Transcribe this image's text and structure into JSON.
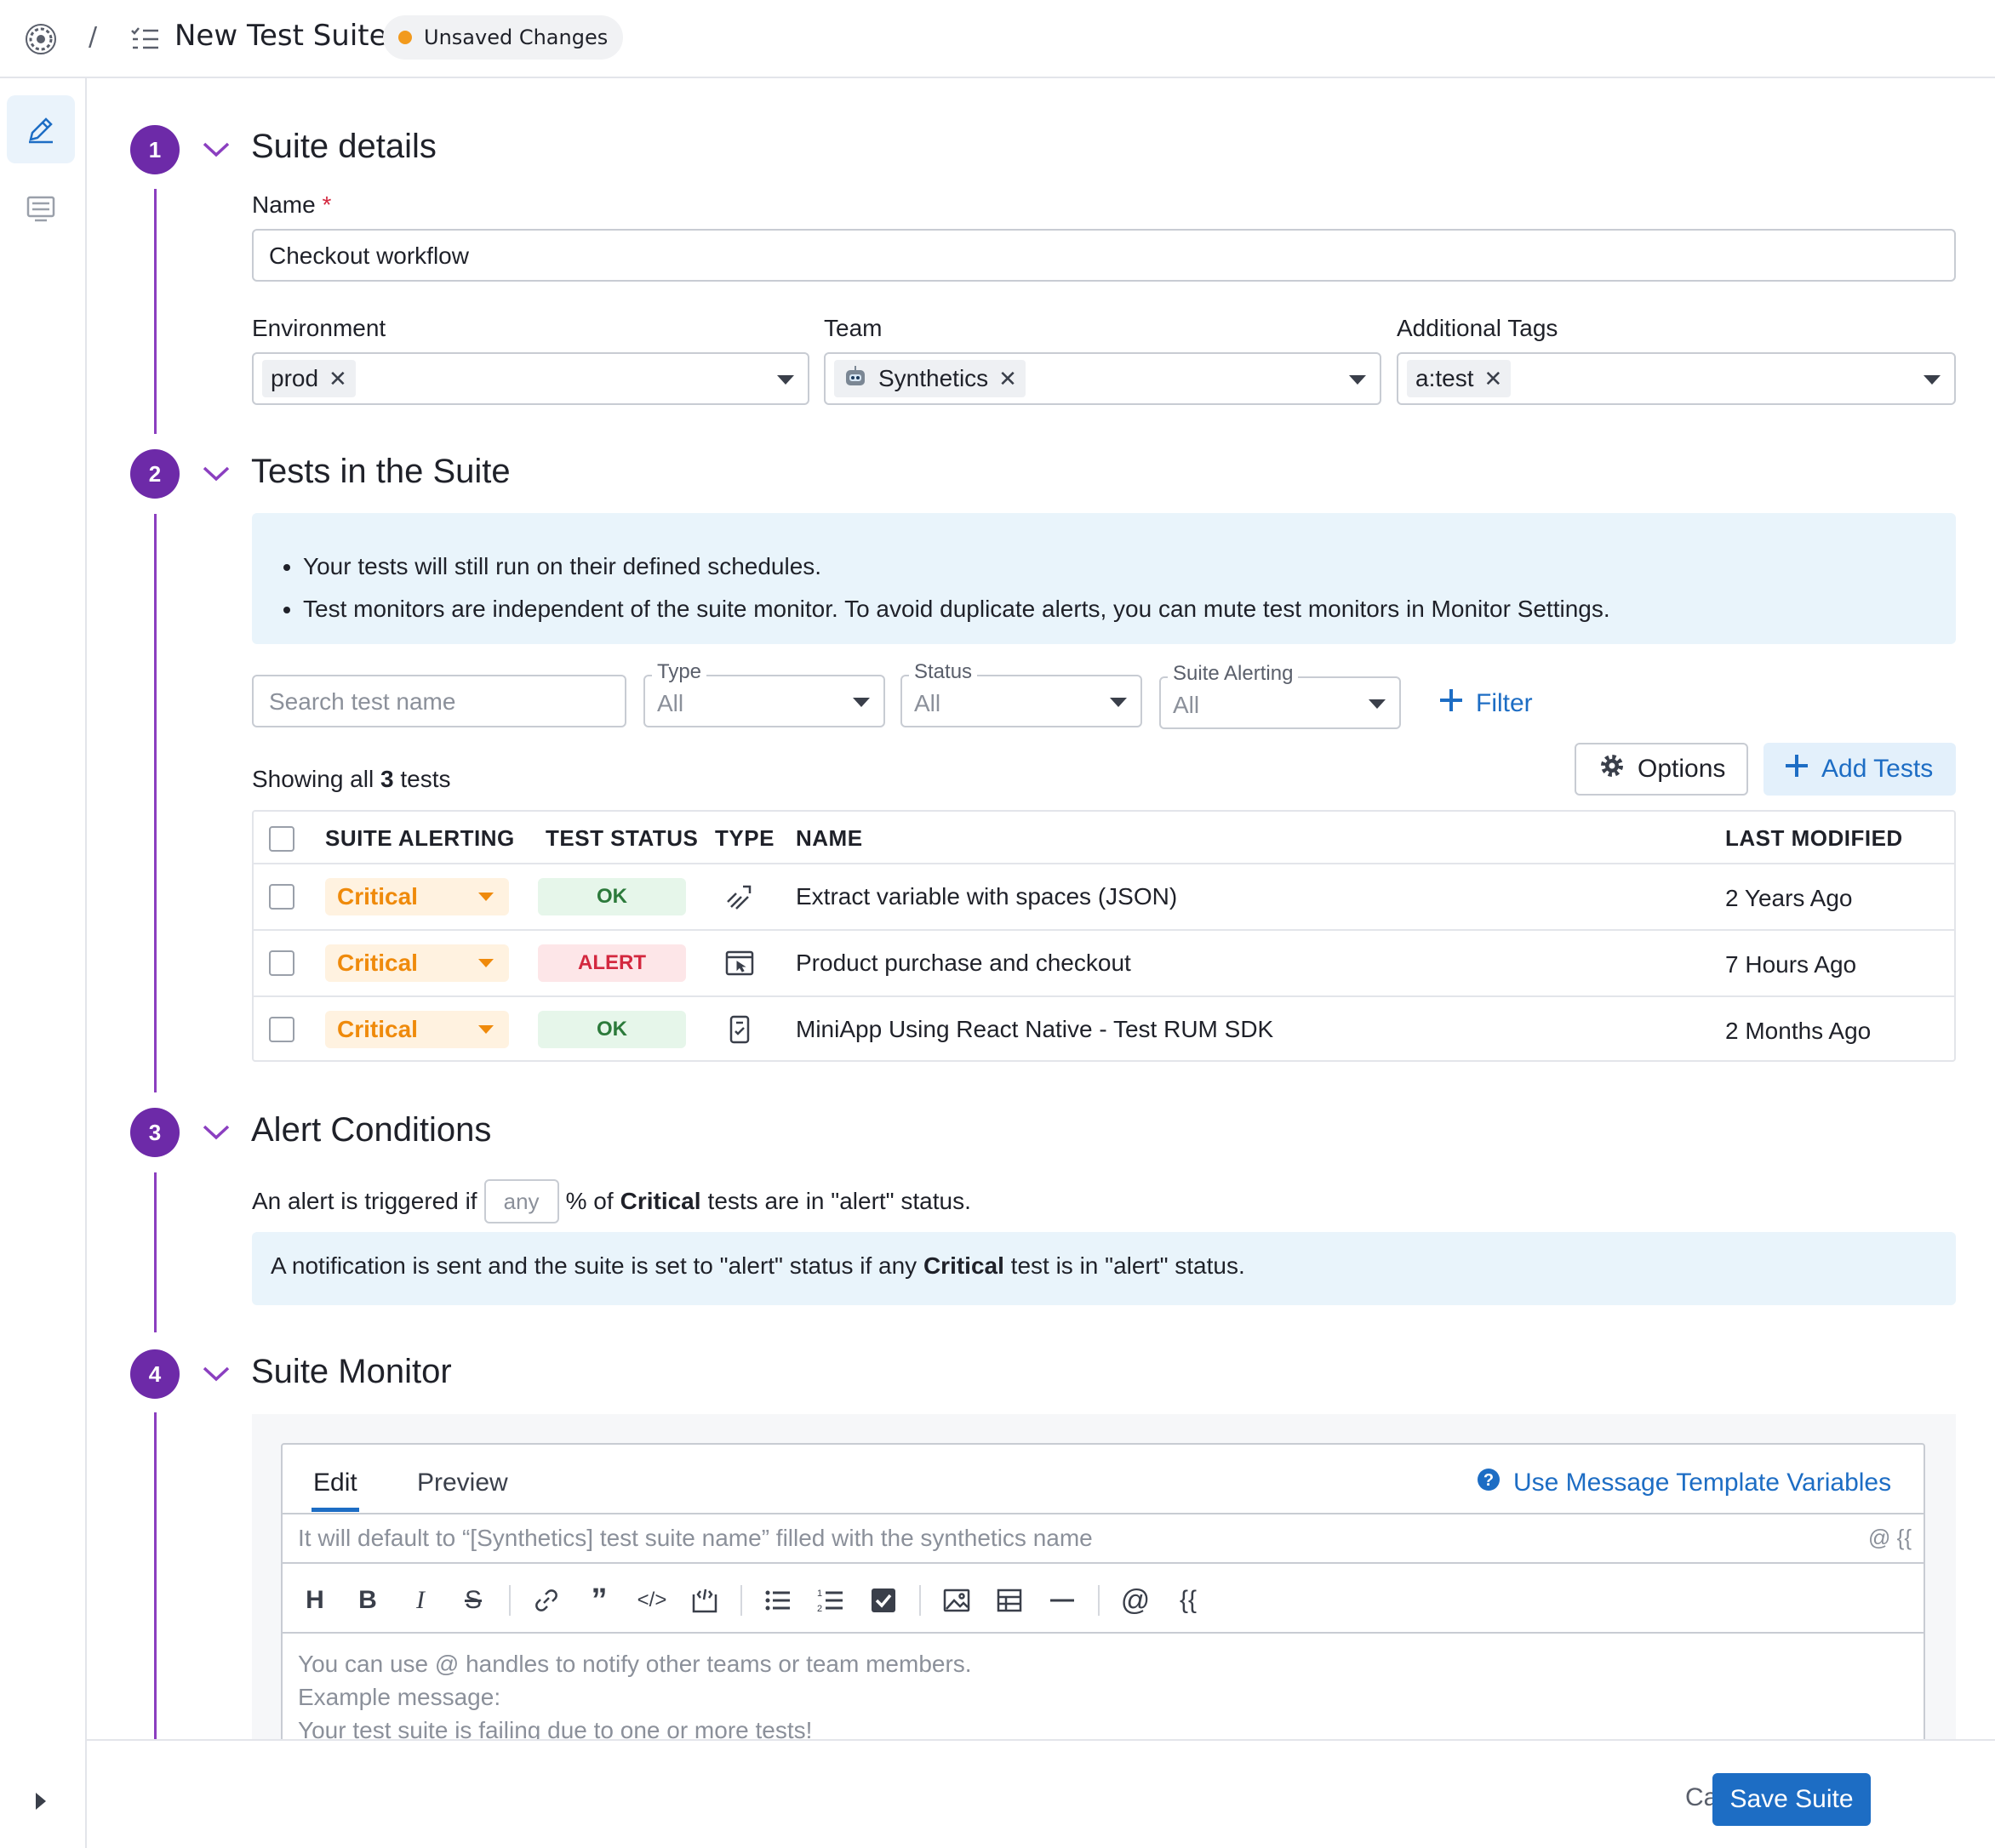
{
  "header": {
    "separator": "/",
    "title": "New Test Suite",
    "status_badge": "Unsaved Changes"
  },
  "steps": [
    {
      "number": "1",
      "title": "Suite details"
    },
    {
      "number": "2",
      "title": "Tests in the Suite"
    },
    {
      "number": "3",
      "title": "Alert Conditions"
    },
    {
      "number": "4",
      "title": "Suite Monitor"
    }
  ],
  "suite_details": {
    "name_label": "Name",
    "required_mark": "*",
    "name_value": "Checkout workflow",
    "environment_label": "Environment",
    "environment_tag": "prod",
    "team_label": "Team",
    "team_tag": "Synthetics",
    "tags_label": "Additional Tags",
    "tags_tag": "a:test"
  },
  "tests": {
    "info": [
      "Your tests will still run on their defined schedules.",
      "Test monitors are independent of the suite monitor. To avoid duplicate alerts, you can mute test monitors in Monitor Settings."
    ],
    "search_placeholder": "Search test name",
    "type_label": "Type",
    "type_value": "All",
    "status_label": "Status",
    "status_value": "All",
    "alerting_label": "Suite Alerting",
    "alerting_value": "All",
    "filter_label": "Filter",
    "showing_prefix": "Showing all",
    "showing_count": "3",
    "showing_suffix": "tests",
    "options_label": "Options",
    "add_tests_label": "Add Tests",
    "columns": [
      "SUITE ALERTING",
      "TEST STATUS",
      "TYPE",
      "NAME",
      "LAST MODIFIED"
    ],
    "rows": [
      {
        "alerting": "Critical",
        "status": "OK",
        "type_icon": "api-multistep-icon",
        "name": "Extract variable with spaces (JSON)",
        "modified": "2 Years Ago"
      },
      {
        "alerting": "Critical",
        "status": "ALERT",
        "type_icon": "browser-test-icon",
        "name": "Product purchase and checkout",
        "modified": "7 Hours Ago"
      },
      {
        "alerting": "Critical",
        "status": "OK",
        "type_icon": "mobile-test-icon",
        "name": "MiniApp Using React Native - Test RUM SDK",
        "modified": "2 Months Ago"
      }
    ]
  },
  "alert_conditions": {
    "prefix": "An alert is triggered if",
    "input_value": "any",
    "middle": "% of",
    "bold": "Critical",
    "suffix": "tests are in \"alert\" status.",
    "note_prefix": "A notification is sent and the suite is set to \"alert\" status if any",
    "note_bold": "Critical",
    "note_suffix": "test is in \"alert\" status."
  },
  "monitor": {
    "tab_edit": "Edit",
    "tab_preview": "Preview",
    "template_link": "Use Message Template Variables",
    "subject_placeholder": "It will default to “[Synthetics] test suite name” filled with the synthetics name",
    "subject_hint": "@ {{",
    "toolbar": {
      "heading": "H",
      "bold": "B",
      "italic": "I",
      "strike": "S",
      "quote": "”",
      "code": "</>",
      "mention": "@",
      "variable": "{{"
    },
    "body_lines": [
      "You can use @ handles to notify other teams or team members.",
      "Example message:",
      "Your test suite is failing due to one or more tests!"
    ]
  },
  "footer": {
    "cancel": "Cancel",
    "save": "Save Suite"
  },
  "colors": {
    "accent": "#1d6dc4",
    "step": "#6d2aa8",
    "critical": "#ef8a0b",
    "ok": "#2c7a3b",
    "alert": "#d3283f",
    "unsaved_dot": "#f29a1d"
  }
}
